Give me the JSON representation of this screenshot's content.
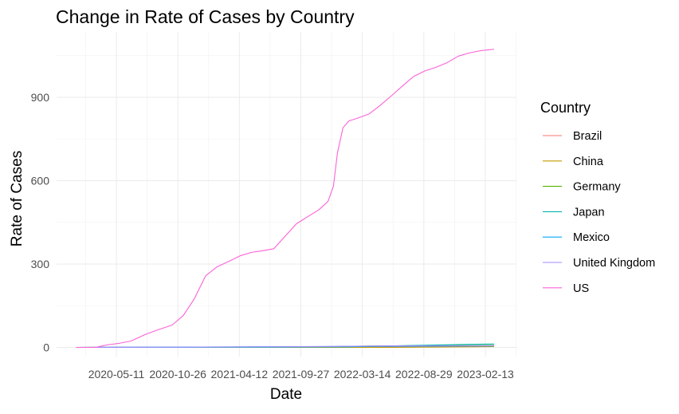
{
  "chart_data": {
    "type": "line",
    "title": "Change in Rate of Cases by Country",
    "xlabel": "Date",
    "ylabel": "Rate of Cases",
    "x_ticks": [
      "2020-05-11",
      "2020-10-26",
      "2021-04-12",
      "2021-09-27",
      "2022-03-14",
      "2022-08-29",
      "2023-02-13"
    ],
    "y_ticks": [
      0,
      300,
      600,
      900
    ],
    "xlim": [
      "2020-01-22",
      "2023-03-09"
    ],
    "ylim": [
      0,
      1070
    ],
    "grid": true,
    "legend": {
      "title": "Country",
      "placement": "right"
    },
    "series": [
      {
        "name": "Brazil",
        "color": "#F8766D",
        "points": [
          [
            "2020-01-22",
            0
          ],
          [
            "2020-10-01",
            0.5
          ],
          [
            "2021-06-01",
            1.5
          ],
          [
            "2022-02-01",
            2.5
          ],
          [
            "2022-09-01",
            3.5
          ],
          [
            "2023-03-09",
            4
          ]
        ]
      },
      {
        "name": "China",
        "color": "#C49A00",
        "points": [
          [
            "2020-01-22",
            0
          ],
          [
            "2021-01-01",
            0.1
          ],
          [
            "2022-06-01",
            0.3
          ],
          [
            "2022-12-15",
            2
          ],
          [
            "2023-03-09",
            3
          ]
        ]
      },
      {
        "name": "Germany",
        "color": "#53B400",
        "points": [
          [
            "2020-01-22",
            0
          ],
          [
            "2020-12-01",
            0.5
          ],
          [
            "2021-12-01",
            2
          ],
          [
            "2022-04-01",
            5
          ],
          [
            "2022-10-01",
            6.5
          ],
          [
            "2023-03-09",
            7
          ]
        ]
      },
      {
        "name": "Japan",
        "color": "#00B6AF",
        "points": [
          [
            "2020-01-22",
            0
          ],
          [
            "2021-06-01",
            0.5
          ],
          [
            "2022-02-01",
            2
          ],
          [
            "2022-08-01",
            7
          ],
          [
            "2023-01-01",
            11
          ],
          [
            "2023-03-09",
            12
          ]
        ]
      },
      {
        "name": "Mexico",
        "color": "#00A9FF",
        "points": [
          [
            "2020-01-22",
            0
          ],
          [
            "2020-10-01",
            1
          ],
          [
            "2021-06-01",
            2
          ],
          [
            "2022-02-01",
            3.5
          ],
          [
            "2022-09-01",
            4.5
          ],
          [
            "2023-03-09",
            5
          ]
        ]
      },
      {
        "name": "United Kingdom",
        "color": "#A58AFF",
        "points": [
          [
            "2020-01-22",
            0
          ],
          [
            "2020-12-01",
            1
          ],
          [
            "2021-12-01",
            3
          ],
          [
            "2022-06-01",
            5.5
          ],
          [
            "2023-03-09",
            6
          ]
        ]
      },
      {
        "name": "US",
        "color": "#FB61D7",
        "points": [
          [
            "2020-01-22",
            0
          ],
          [
            "2020-03-15",
            0
          ],
          [
            "2020-04-15",
            9
          ],
          [
            "2020-05-20",
            15
          ],
          [
            "2020-06-20",
            23
          ],
          [
            "2020-08-01",
            48
          ],
          [
            "2020-09-05",
            65
          ],
          [
            "2020-10-10",
            80
          ],
          [
            "2020-11-10",
            115
          ],
          [
            "2020-12-10",
            175
          ],
          [
            "2021-01-10",
            258
          ],
          [
            "2021-02-10",
            290
          ],
          [
            "2021-03-15",
            310
          ],
          [
            "2021-04-15",
            330
          ],
          [
            "2021-05-15",
            342
          ],
          [
            "2021-06-15",
            348
          ],
          [
            "2021-07-15",
            355
          ],
          [
            "2021-08-15",
            400
          ],
          [
            "2021-09-15",
            445
          ],
          [
            "2021-10-15",
            470
          ],
          [
            "2021-11-15",
            495
          ],
          [
            "2021-12-10",
            525
          ],
          [
            "2021-12-25",
            580
          ],
          [
            "2022-01-05",
            700
          ],
          [
            "2022-01-20",
            790
          ],
          [
            "2022-02-05",
            815
          ],
          [
            "2022-03-01",
            825
          ],
          [
            "2022-04-01",
            840
          ],
          [
            "2022-05-01",
            870
          ],
          [
            "2022-06-01",
            905
          ],
          [
            "2022-07-01",
            940
          ],
          [
            "2022-08-01",
            975
          ],
          [
            "2022-09-01",
            995
          ],
          [
            "2022-10-01",
            1008
          ],
          [
            "2022-11-01",
            1025
          ],
          [
            "2022-12-01",
            1048
          ],
          [
            "2023-01-01",
            1060
          ],
          [
            "2023-02-01",
            1068
          ],
          [
            "2023-03-09",
            1073
          ]
        ]
      }
    ]
  }
}
